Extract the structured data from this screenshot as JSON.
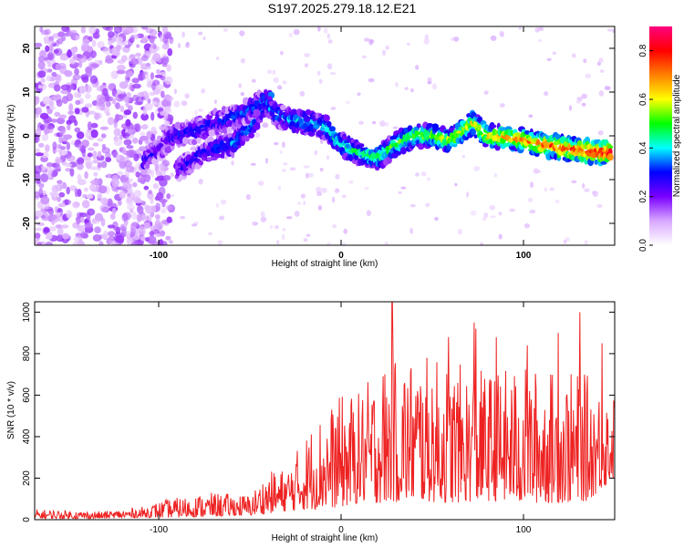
{
  "title": "S197.2025.279.18.12.E21",
  "chart_data": [
    {
      "type": "heatmap",
      "xlabel": "Height of straight line (km)",
      "ylabel": "Frequency (Hz)",
      "xlim": [
        -168,
        150
      ],
      "ylim": [
        -25,
        25
      ],
      "xticks": [
        -100,
        0,
        100
      ],
      "yticks": [
        -20,
        -10,
        0,
        10,
        20
      ],
      "colorbar": {
        "label": "Normalized spectral amplitude",
        "range": [
          0,
          0.9
        ],
        "ticks": [
          "0.0",
          "0.2",
          "0.4",
          "0.6",
          "0.8"
        ],
        "colors": [
          "#ffffff",
          "#d9a8ff",
          "#7a00ff",
          "#0000ff",
          "#00ffff",
          "#00ff00",
          "#ffff00",
          "#ff8000",
          "#ff0000",
          "#ff0080"
        ]
      },
      "ridge": [
        {
          "x": -108,
          "y": -6
        },
        {
          "x": -100,
          "y": -3
        },
        {
          "x": -92,
          "y": 0
        },
        {
          "x": -80,
          "y": 1
        },
        {
          "x": -70,
          "y": 3
        },
        {
          "x": -60,
          "y": 4
        },
        {
          "x": -50,
          "y": 6
        },
        {
          "x": -42,
          "y": 8
        },
        {
          "x": -36,
          "y": 5
        },
        {
          "x": -28,
          "y": 3.5
        },
        {
          "x": -18,
          "y": 3
        },
        {
          "x": -8,
          "y": 2
        },
        {
          "x": 0,
          "y": -2
        },
        {
          "x": 10,
          "y": -4
        },
        {
          "x": 20,
          "y": -5
        },
        {
          "x": 30,
          "y": -2
        },
        {
          "x": 40,
          "y": 0
        },
        {
          "x": 50,
          "y": 0
        },
        {
          "x": 60,
          "y": -1
        },
        {
          "x": 72,
          "y": 3
        },
        {
          "x": 80,
          "y": 0
        },
        {
          "x": 95,
          "y": -0.5
        },
        {
          "x": 110,
          "y": -2
        },
        {
          "x": 125,
          "y": -3
        },
        {
          "x": 148,
          "y": -4
        }
      ],
      "secondary_ridge": [
        {
          "x": -90,
          "y": -8
        },
        {
          "x": -80,
          "y": -5
        },
        {
          "x": -70,
          "y": -3
        },
        {
          "x": -60,
          "y": -2
        },
        {
          "x": -50,
          "y": 2
        },
        {
          "x": -44,
          "y": 6
        },
        {
          "x": -38,
          "y": 9
        }
      ]
    },
    {
      "type": "line",
      "xlabel": "Height of straight line (km)",
      "ylabel": "SNR (10 * v/v)",
      "xlim": [
        -168,
        150
      ],
      "ylim": [
        0,
        1050
      ],
      "xticks": [
        -100,
        0,
        100
      ],
      "yticks": [
        0,
        200,
        400,
        600,
        800,
        1000
      ],
      "series": [
        {
          "name": "SNR",
          "color": "#ee2222",
          "envelope": [
            {
              "x": -168,
              "lo": 5,
              "hi": 50
            },
            {
              "x": -130,
              "lo": 5,
              "hi": 40
            },
            {
              "x": -110,
              "lo": 10,
              "hi": 60
            },
            {
              "x": -95,
              "lo": 10,
              "hi": 100
            },
            {
              "x": -70,
              "lo": 15,
              "hi": 130
            },
            {
              "x": -50,
              "lo": 20,
              "hi": 120
            },
            {
              "x": -40,
              "lo": 30,
              "hi": 230
            },
            {
              "x": -30,
              "lo": 40,
              "hi": 250
            },
            {
              "x": -15,
              "lo": 50,
              "hi": 480
            },
            {
              "x": 0,
              "lo": 60,
              "hi": 600
            },
            {
              "x": 10,
              "lo": 80,
              "hi": 620
            },
            {
              "x": 25,
              "lo": 80,
              "hi": 780
            },
            {
              "x": 40,
              "lo": 90,
              "hi": 800
            },
            {
              "x": 60,
              "lo": 80,
              "hi": 760
            },
            {
              "x": 80,
              "lo": 90,
              "hi": 720
            },
            {
              "x": 100,
              "lo": 80,
              "hi": 740
            },
            {
              "x": 120,
              "lo": 80,
              "hi": 720
            },
            {
              "x": 135,
              "lo": 90,
              "hi": 700
            },
            {
              "x": 150,
              "lo": 200,
              "hi": 600
            }
          ],
          "peaks": [
            {
              "x": 28,
              "y": 1045
            },
            {
              "x": 73,
              "y": 950
            },
            {
              "x": 131,
              "y": 1000
            },
            {
              "x": 119,
              "y": 900
            },
            {
              "x": 74,
              "y": 920
            },
            {
              "x": 59,
              "y": 880
            },
            {
              "x": 85,
              "y": 880
            },
            {
              "x": 143,
              "y": 850
            },
            {
              "x": 102,
              "y": 840
            }
          ]
        }
      ]
    }
  ]
}
